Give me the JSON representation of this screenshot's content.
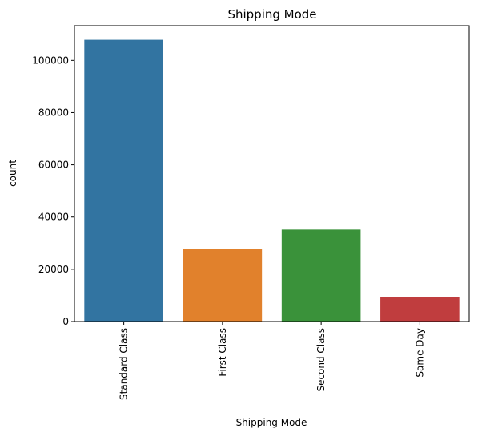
{
  "chart_data": {
    "type": "bar",
    "title": "Shipping Mode",
    "xlabel": "Shipping Mode",
    "ylabel": "count",
    "categories": [
      "Standard Class",
      "First Class",
      "Second Class",
      "Same Day"
    ],
    "values": [
      107900,
      27800,
      35200,
      9400
    ],
    "colors": [
      "#3274a1",
      "#e1812c",
      "#3a923a",
      "#c03d3e"
    ],
    "yticks": [
      0,
      20000,
      40000,
      60000,
      80000,
      100000
    ],
    "ylim": [
      0,
      113300
    ],
    "grid": false,
    "legend": "none"
  }
}
